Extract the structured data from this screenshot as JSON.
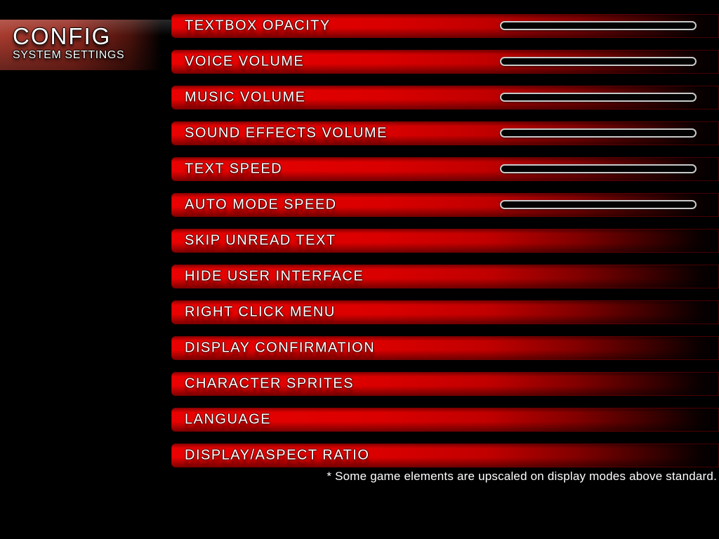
{
  "title": {
    "heading": "CONFIG",
    "subheading": "SYSTEM SETTINGS"
  },
  "settings": [
    {
      "label": "TEXTBOX OPACITY",
      "slider": true
    },
    {
      "label": "VOICE VOLUME",
      "slider": true
    },
    {
      "label": "MUSIC VOLUME",
      "slider": true
    },
    {
      "label": "SOUND EFFECTS VOLUME",
      "slider": true
    },
    {
      "label": "TEXT SPEED",
      "slider": true
    },
    {
      "label": "AUTO MODE SPEED",
      "slider": true
    },
    {
      "label": "SKIP UNREAD TEXT",
      "slider": false
    },
    {
      "label": "HIDE USER INTERFACE",
      "slider": false
    },
    {
      "label": "RIGHT CLICK MENU",
      "slider": false
    },
    {
      "label": "DISPLAY CONFIRMATION",
      "slider": false
    },
    {
      "label": "CHARACTER SPRITES",
      "slider": false
    },
    {
      "label": "LANGUAGE",
      "slider": false
    },
    {
      "label": "DISPLAY/ASPECT RATIO",
      "slider": false
    }
  ],
  "footnote": "* Some game elements are upscaled on display modes above standard.",
  "colors": {
    "background": "#000000",
    "bar_red": "#e00000",
    "title_block_red": "#9e342a",
    "slider_border": "#c9c9c9",
    "label_text": "#ffffff"
  }
}
